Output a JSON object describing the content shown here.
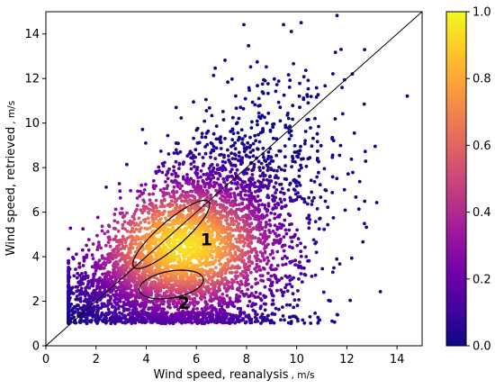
{
  "chart_data": {
    "type": "scatter",
    "title": "",
    "xlabel": "Wind speed, reanalysis",
    "xlabel_unit": "m/s",
    "ylabel": "Wind speed, retrieved",
    "ylabel_unit": "m/s",
    "xlim": [
      0,
      15
    ],
    "ylim": [
      0,
      15
    ],
    "xticks": [
      0,
      2,
      4,
      6,
      8,
      10,
      12,
      14
    ],
    "yticks": [
      0,
      2,
      4,
      6,
      8,
      10,
      12,
      14
    ],
    "grid": false,
    "reference_line": "y = x",
    "colormap": "plasma",
    "color_meaning": "point density (normalized)",
    "colorbar_range": [
      0,
      1
    ],
    "colorbar_ticks": [
      "0.0",
      "0.2",
      "0.4",
      "0.6",
      "0.8",
      "1.0"
    ],
    "colormap_stops": [
      "#0d0887",
      "#46039f",
      "#7201a8",
      "#9c179e",
      "#bd3786",
      "#d8576b",
      "#ed7953",
      "#fb9f3a",
      "#fdca26",
      "#f0f921"
    ],
    "density_peak": {
      "x": 5.5,
      "y": 4.5
    },
    "point_count_approx": 5000,
    "regions": [
      {
        "label": "1",
        "center": [
          5.0,
          5.0
        ],
        "semi_major": 2.1,
        "semi_minor": 0.55,
        "angle_deg": 45,
        "label_at": [
          6.4,
          4.8
        ]
      },
      {
        "label": "2",
        "center": [
          5.0,
          2.75
        ],
        "semi_major": 1.3,
        "semi_minor": 0.6,
        "angle_deg": 12,
        "label_at": [
          5.5,
          1.95
        ]
      }
    ]
  }
}
